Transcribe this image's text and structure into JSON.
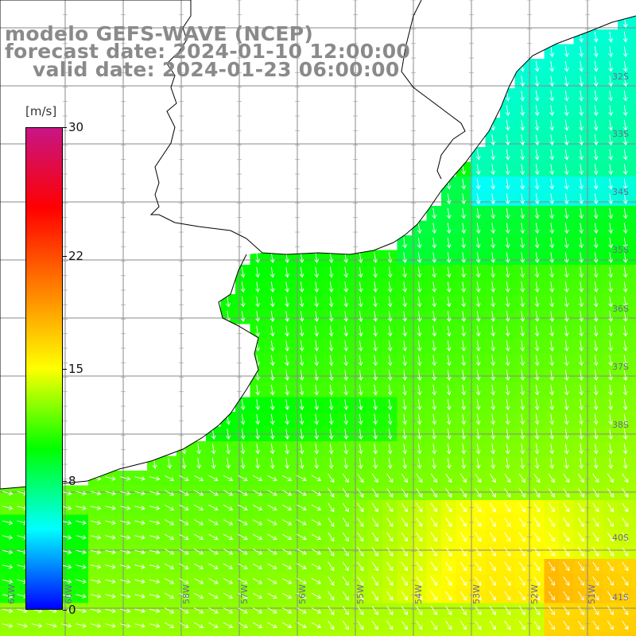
{
  "title": {
    "model": "modelo GEFS-WAVE (NCEP)",
    "forecast": "forecast date: 2024-01-10 12:00:00",
    "valid": "valid date: 2024-01-23 06:00:00"
  },
  "colorbar": {
    "unit": "[m/s]",
    "min": 0,
    "max": 30,
    "ticks": [
      "30",
      "22",
      "15",
      "8",
      "0"
    ],
    "tick_values": [
      30,
      22,
      15,
      8,
      0
    ],
    "colors": [
      "#0000ff",
      "#00ffff",
      "#00ff00",
      "#ffff00",
      "#ff7f00",
      "#ff0000",
      "#c71585"
    ]
  },
  "map": {
    "variable": "wind speed and direction",
    "land_color": "#ffffff",
    "grid_color": "#888888",
    "coast_color": "#000000",
    "arrow_color": "#ffffff",
    "lat_labels": [
      "32S",
      "33S",
      "34S",
      "35S",
      "36S",
      "37S",
      "38S",
      "40S",
      "41S"
    ],
    "lon_labels": [
      "61W",
      "60W",
      "58W",
      "57W",
      "56W",
      "55W",
      "54W",
      "53W",
      "52W",
      "51W"
    ]
  }
}
